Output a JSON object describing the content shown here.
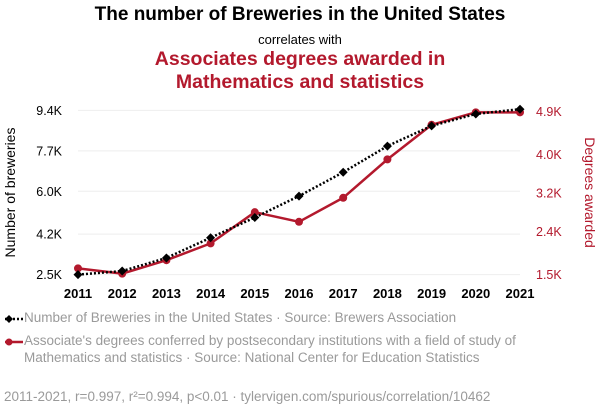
{
  "header": {
    "title": "The number of Breweries in the United States",
    "subtitle": "correlates with",
    "title2_line1": "Associates degrees awarded in",
    "title2_line2": "Mathematics and statistics"
  },
  "colors": {
    "series1": "#000000",
    "series2": "#b3192d",
    "muted": "#9a9a9a",
    "grid": "#eeeeee"
  },
  "chart_data": {
    "type": "line",
    "x": [
      2011,
      2012,
      2013,
      2014,
      2015,
      2016,
      2017,
      2018,
      2019,
      2020,
      2021
    ],
    "xtick_labels": [
      "2011",
      "2012",
      "2013",
      "2014",
      "2015",
      "2016",
      "2017",
      "2018",
      "2019",
      "2020",
      "2021"
    ],
    "y_left": {
      "label": "Number of breweries",
      "range": [
        2400,
        9500
      ],
      "ticks": [
        2500,
        4200,
        6000,
        7700,
        9400
      ],
      "tick_labels": [
        "2.5K",
        "4.2K",
        "6.0K",
        "7.7K",
        "9.4K"
      ]
    },
    "y_right": {
      "label": "Degrees awarded",
      "range": [
        1450,
        4970
      ],
      "ticks": [
        1500,
        2400,
        3200,
        4000,
        4900
      ],
      "tick_labels": [
        "1.5K",
        "2.4K",
        "3.2K",
        "4.0K",
        "4.9K"
      ]
    },
    "grid": "horizontal",
    "legend_position": "bottom",
    "series": [
      {
        "name": "Number of Breweries in the United States · Source: Brewers Association",
        "axis": "left",
        "style": "dotted",
        "marker": "diamond",
        "color": "#000000",
        "values": [
          2500,
          2650,
          3200,
          4050,
          4900,
          5800,
          6800,
          7900,
          8750,
          9250,
          9450
        ]
      },
      {
        "name": "Associate's degrees conferred by postsecondary institutions with a field of study of Mathematics and statistics · Source: National Center for Education Statistics",
        "axis": "right",
        "style": "solid",
        "marker": "circle",
        "color": "#b3192d",
        "values": [
          1630,
          1520,
          1800,
          2150,
          2800,
          2600,
          3100,
          3900,
          4620,
          4880,
          4880
        ]
      }
    ]
  },
  "legend": {
    "series1_text": "Number of Breweries in the United States · Source: Brewers Association",
    "series2_text": "Associate's degrees conferred by postsecondary institutions with a field of study of Mathematics and statistics · Source: National Center for Education Statistics"
  },
  "footer": {
    "text": "2011-2021, r=0.997, r²=0.994, p<0.01 · tylervigen.com/spurious/correlation/10462"
  }
}
